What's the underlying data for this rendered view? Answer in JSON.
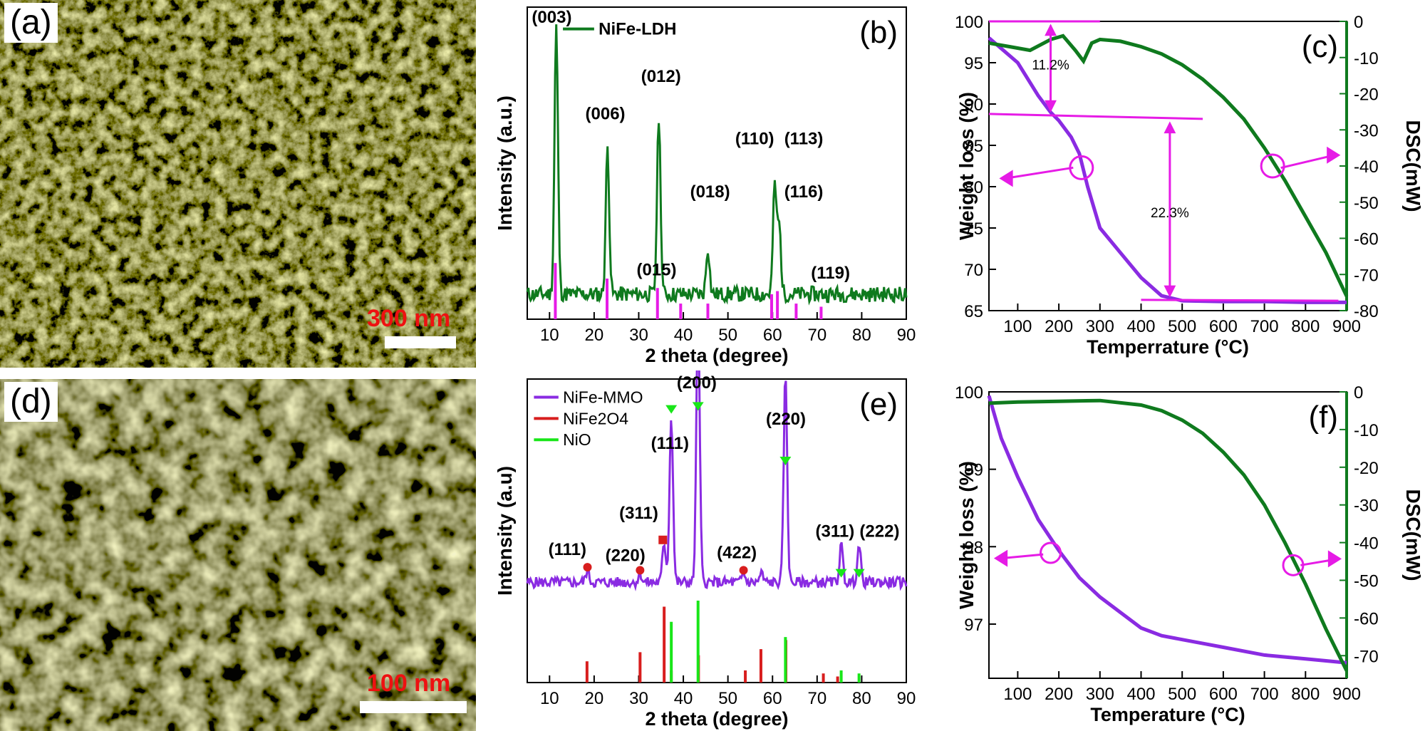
{
  "panels": {
    "a": {
      "label": "(a)",
      "scale_text": "300 nm"
    },
    "d": {
      "label": "(d)",
      "scale_text": "100 nm"
    }
  },
  "colors": {
    "green": "#0f7a1e",
    "magenta": "#e61be6",
    "purple": "#8a2be2",
    "red": "#d81e1e",
    "nio": "#19e619"
  },
  "chart_data": [
    {
      "id": "b",
      "panel_label": "(b)",
      "type": "line",
      "xlabel": "2 theta (degree)",
      "ylabel": "Intensity (a.u.)",
      "xlim": [
        5,
        90
      ],
      "xticks": [
        "10",
        "20",
        "30",
        "40",
        "50",
        "60",
        "70",
        "80",
        "90"
      ],
      "series": [
        {
          "name": "NiFe-LDH",
          "color": "#0f7a1e",
          "peaks": [
            [
              11.5,
              0.86
            ],
            [
              23,
              0.47
            ],
            [
              34.5,
              0.57
            ],
            [
              45.5,
              0.15
            ],
            [
              60.5,
              0.35
            ],
            [
              61.5,
              0.22
            ]
          ],
          "baseline": 0.08
        }
      ],
      "reference_lines": {
        "color": "#e61be6",
        "positions": [
          11.3,
          22.9,
          34.2,
          39.4,
          45.5,
          59.8,
          61.1,
          65.3,
          70.9
        ],
        "heights": [
          0.18,
          0.13,
          0.1,
          0.05,
          0.05,
          0.08,
          0.09,
          0.05,
          0.04
        ]
      },
      "annotations": [
        {
          "text": "(003)",
          "x": 10.5,
          "y": 0.95
        },
        {
          "text": "(006)",
          "x": 22.5,
          "y": 0.64
        },
        {
          "text": "(012)",
          "x": 35,
          "y": 0.76
        },
        {
          "text": "(015)",
          "x": 34,
          "y": 0.14
        },
        {
          "text": "(018)",
          "x": 46,
          "y": 0.39
        },
        {
          "text": "(110)",
          "x": 56,
          "y": 0.56
        },
        {
          "text": "(113)",
          "x": 67,
          "y": 0.56
        },
        {
          "text": "(116)",
          "x": 67,
          "y": 0.39
        },
        {
          "text": "(119)",
          "x": 73,
          "y": 0.13
        }
      ]
    },
    {
      "id": "c",
      "panel_label": "(c)",
      "type": "line",
      "xlabel": "Temperrature (°C)",
      "ylabel": "Weight loss (%)",
      "y2label": "DSC(mW)",
      "xlim": [
        30,
        900
      ],
      "ylim": [
        65,
        100
      ],
      "y2lim": [
        -80,
        0
      ],
      "xticks": [
        "100",
        "200",
        "300",
        "400",
        "500",
        "600",
        "700",
        "800",
        "900"
      ],
      "yticks": [
        "65",
        "70",
        "75",
        "80",
        "85",
        "90",
        "95",
        "100"
      ],
      "y2ticks": [
        "0",
        "-10",
        "-20",
        "-30",
        "-40",
        "-50",
        "-60",
        "-70",
        "-80"
      ],
      "series": [
        {
          "name": "Weight loss",
          "axis": "left",
          "color": "#8a2be2",
          "x": [
            30,
            100,
            150,
            180,
            200,
            230,
            250,
            270,
            300,
            350,
            400,
            450,
            500,
            600,
            700,
            800,
            900
          ],
          "y": [
            98,
            95,
            91,
            89,
            88,
            86,
            84,
            80,
            75,
            72,
            69,
            66.8,
            66.2,
            66.1,
            66.1,
            66.0,
            66.0
          ]
        },
        {
          "name": "DSC",
          "axis": "right",
          "color": "#0f7a1e",
          "x": [
            30,
            80,
            130,
            180,
            210,
            240,
            260,
            280,
            300,
            350,
            400,
            450,
            500,
            550,
            600,
            650,
            700,
            750,
            800,
            850,
            900
          ],
          "y": [
            -6,
            -7,
            -8,
            -5,
            -4,
            -8,
            -11,
            -6,
            -5,
            -5.5,
            -7,
            -9,
            -12,
            -16,
            -21,
            -27,
            -35,
            -44,
            -54,
            -64,
            -76
          ]
        }
      ],
      "annotations": [
        {
          "text": "11.2%"
        },
        {
          "text": "22.3%"
        }
      ]
    },
    {
      "id": "e",
      "panel_label": "(e)",
      "type": "line",
      "xlabel": "2 theta (degree)",
      "ylabel": "Intensity (a.u)",
      "xlim": [
        5,
        90
      ],
      "xticks": [
        "10",
        "20",
        "30",
        "40",
        "50",
        "60",
        "70",
        "80",
        "90"
      ],
      "legend": [
        {
          "name": "NiFe-MMO",
          "color": "#8a2be2"
        },
        {
          "name": "NiFe2O4",
          "color": "#d81e1e"
        },
        {
          "name": "NiO",
          "color": "#19e619"
        }
      ],
      "series": [
        {
          "name": "NiFe-MMO",
          "color": "#8a2be2",
          "peaks": [
            [
              18.5,
              0.04
            ],
            [
              30.3,
              0.03
            ],
            [
              35.7,
              0.13
            ],
            [
              37.3,
              0.55
            ],
            [
              43.3,
              0.87
            ],
            [
              53.5,
              0.03
            ],
            [
              57.5,
              0.03
            ],
            [
              62.9,
              0.68
            ],
            [
              75.4,
              0.12
            ],
            [
              79.4,
              0.12
            ]
          ],
          "baseline": 0.33
        }
      ],
      "reference_lines_red": {
        "positions": [
          18.4,
          30.3,
          35.7,
          37.3,
          43.4,
          53.9,
          57.4,
          63.0,
          71.4,
          74.6
        ],
        "heights": [
          0.07,
          0.1,
          0.25,
          0.04,
          0.09,
          0.04,
          0.11,
          0.14,
          0.03,
          0.02
        ]
      },
      "reference_lines_green": {
        "positions": [
          37.3,
          43.3,
          62.9,
          75.4,
          79.4
        ],
        "heights": [
          0.2,
          0.27,
          0.15,
          0.04,
          0.03
        ]
      },
      "annotations": [
        {
          "text": "(111)",
          "x": 14,
          "y": 0.42
        },
        {
          "text": "(220)",
          "x": 27,
          "y": 0.4
        },
        {
          "text": "(311)",
          "x": 30,
          "y": 0.54
        },
        {
          "text": "(111)",
          "x": 37,
          "y": 0.77
        },
        {
          "text": "(200)",
          "x": 43,
          "y": 0.97
        },
        {
          "text": "(422)",
          "x": 52,
          "y": 0.41
        },
        {
          "text": "(220)",
          "x": 63,
          "y": 0.85
        },
        {
          "text": "(311)",
          "x": 74,
          "y": 0.48
        },
        {
          "text": "(222)",
          "x": 84,
          "y": 0.48
        }
      ]
    },
    {
      "id": "f",
      "panel_label": "(f)",
      "type": "line",
      "xlabel": "Temperature (°C)",
      "ylabel": "Weight loss (%)",
      "y2label": "DSC(mW)",
      "xlim": [
        30,
        900
      ],
      "ylim": [
        96.3,
        100
      ],
      "y2lim": [
        -76,
        0
      ],
      "xticks": [
        "100",
        "200",
        "300",
        "400",
        "500",
        "600",
        "700",
        "800",
        "900"
      ],
      "yticks": [
        "97",
        "98",
        "99",
        "100"
      ],
      "y2ticks": [
        "0",
        "-10",
        "-20",
        "-30",
        "-40",
        "-50",
        "-60",
        "-70"
      ],
      "series": [
        {
          "name": "Weight loss",
          "axis": "left",
          "color": "#8a2be2",
          "x": [
            30,
            60,
            100,
            150,
            200,
            250,
            300,
            350,
            400,
            450,
            500,
            550,
            600,
            700,
            800,
            900
          ],
          "y": [
            99.95,
            99.4,
            98.9,
            98.35,
            97.95,
            97.6,
            97.35,
            97.15,
            96.95,
            96.85,
            96.8,
            96.75,
            96.7,
            96.6,
            96.55,
            96.5
          ]
        },
        {
          "name": "DSC",
          "axis": "right",
          "color": "#0f7a1e",
          "x": [
            30,
            100,
            200,
            300,
            400,
            450,
            500,
            550,
            600,
            650,
            700,
            750,
            800,
            850,
            900
          ],
          "y": [
            -3,
            -2.7,
            -2.5,
            -2.3,
            -3.5,
            -5,
            -7.5,
            -11,
            -16,
            -22,
            -30,
            -40,
            -51,
            -63,
            -74
          ]
        }
      ]
    }
  ]
}
